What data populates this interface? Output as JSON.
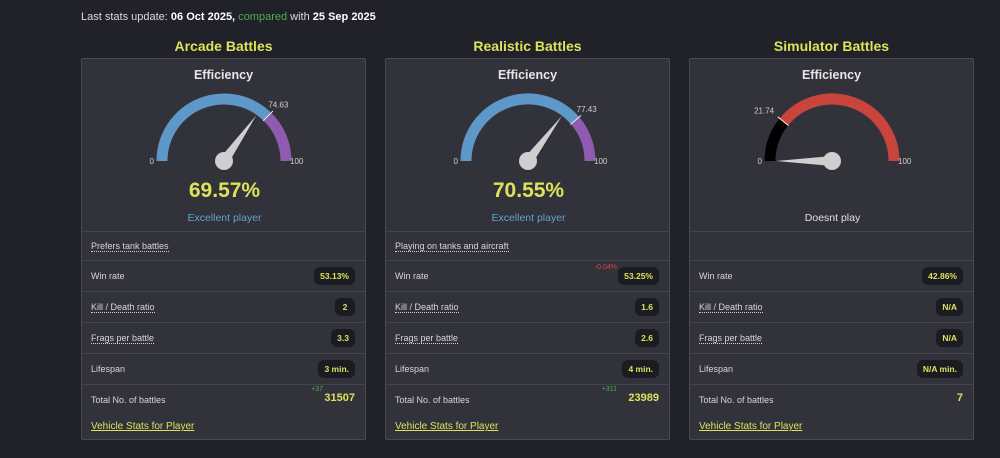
{
  "update": {
    "prefix": "Last stats update:",
    "date": "06 Oct 2025,",
    "compared": "compared",
    "with": "with",
    "compare_date": "25 Sep 2025"
  },
  "panels": [
    {
      "title": "Arcade Battles",
      "eff_title": "Efficiency",
      "gauge": {
        "min": "0",
        "max": "100",
        "threshold_label": "74.63",
        "threshold": 74.63,
        "value": 69.57,
        "color_main": "#5e98c8",
        "color_high": "#8f5bb0"
      },
      "efficiency": "69.57%",
      "desc": "Excellent player",
      "prefers": "Prefers tank battles",
      "win_rate_label": "Win rate",
      "win_rate": "53.13%",
      "win_delta": "",
      "kd_label": "Kill / Death ratio",
      "kd": "2",
      "frags_label": "Frags per battle",
      "frags": "3.3",
      "life_label": "Lifespan",
      "life": "3 min.",
      "total_label": "Total No. of battles",
      "total": "31507",
      "total_delta": "+37",
      "link": "Vehicle Stats for Player"
    },
    {
      "title": "Realistic Battles",
      "eff_title": "Efficiency",
      "gauge": {
        "min": "0",
        "max": "100",
        "threshold_label": "77.43",
        "threshold": 77.43,
        "value": 70.55,
        "color_main": "#5e98c8",
        "color_high": "#8f5bb0"
      },
      "efficiency": "70.55%",
      "desc": "Excellent player",
      "prefers": "Playing on tanks and aircraft",
      "win_rate_label": "Win rate",
      "win_rate": "53.25%",
      "win_delta": "-0.04%",
      "kd_label": "Kill / Death ratio",
      "kd": "1.6",
      "frags_label": "Frags per battle",
      "frags": "2.6",
      "life_label": "Lifespan",
      "life": "4 min.",
      "total_label": "Total No. of battles",
      "total": "23989",
      "total_delta": "+311",
      "link": "Vehicle Stats for Player"
    },
    {
      "title": "Simulator Battles",
      "eff_title": "Efficiency",
      "gauge": {
        "min": "0",
        "max": "100",
        "threshold_label": "21.74",
        "threshold": 21.74,
        "value": 0,
        "color_main": "#c9443a",
        "color_low": "#000000"
      },
      "efficiency": "",
      "desc": "Doesnt play",
      "prefers": "",
      "win_rate_label": "Win rate",
      "win_rate": "42.86%",
      "win_delta": "",
      "kd_label": "Kill / Death ratio",
      "kd": "N/A",
      "frags_label": "Frags per battle",
      "frags": "N/A",
      "life_label": "Lifespan",
      "life": "N/A min.",
      "total_label": "Total No. of battles",
      "total": "7",
      "total_delta": "",
      "link": "Vehicle Stats for Player"
    }
  ]
}
